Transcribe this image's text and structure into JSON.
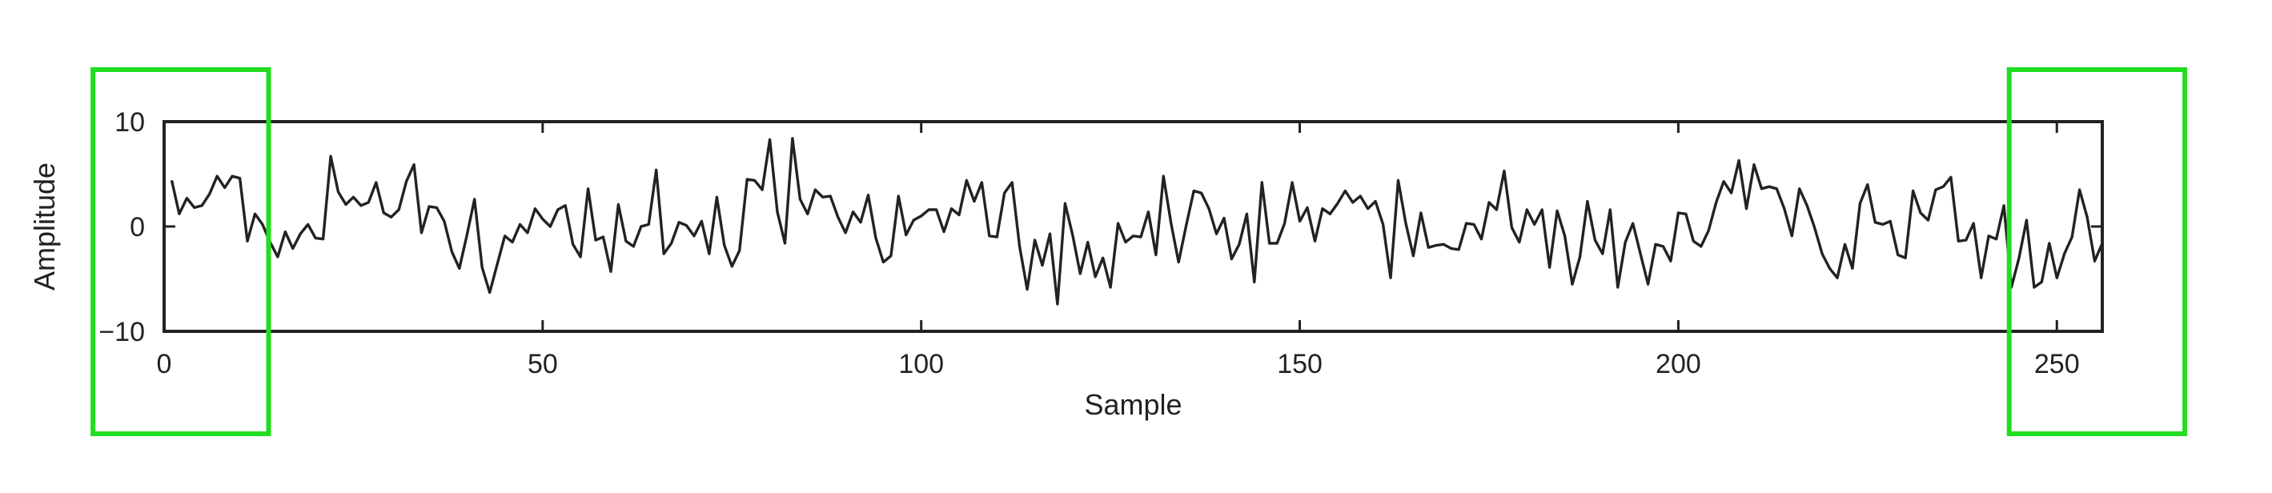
{
  "chart_data": {
    "type": "line",
    "title": "",
    "xlabel": "Sample",
    "ylabel": "Amplitude",
    "xlim": [
      0,
      256
    ],
    "ylim": [
      -10,
      10
    ],
    "xticks": [
      0,
      50,
      100,
      150,
      200,
      250
    ],
    "yticks": [
      -10,
      0,
      10
    ],
    "grid": false,
    "line_color": "#222222",
    "highlight_color": "#22dd22",
    "highlight_ranges": [
      [
        -9.4,
        13.8
      ],
      [
        243.7,
        266.9
      ]
    ],
    "series": [
      {
        "name": "",
        "x": [
          1,
          2,
          3,
          4,
          5,
          6,
          7,
          8,
          9,
          10,
          11,
          12,
          13,
          14,
          15,
          16,
          17,
          18,
          19,
          20,
          21,
          22,
          23,
          24,
          25,
          26,
          27,
          28,
          29,
          30,
          31,
          32,
          33,
          34,
          35,
          36,
          37,
          38,
          39,
          40,
          41,
          42,
          43,
          44,
          45,
          46,
          47,
          48,
          49,
          50,
          51,
          52,
          53,
          54,
          55,
          56,
          57,
          58,
          59,
          60,
          61,
          62,
          63,
          64,
          65,
          66,
          67,
          68,
          69,
          70,
          71,
          72,
          73,
          74,
          75,
          76,
          77,
          78,
          79,
          80,
          81,
          82,
          83,
          84,
          85,
          86,
          87,
          88,
          89,
          90,
          91,
          92,
          93,
          94,
          95,
          96,
          97,
          98,
          99,
          100,
          101,
          102,
          103,
          104,
          105,
          106,
          107,
          108,
          109,
          110,
          111,
          112,
          113,
          114,
          115,
          116,
          117,
          118,
          119,
          120,
          121,
          122,
          123,
          124,
          125,
          126,
          127,
          128,
          129,
          130,
          131,
          132,
          133,
          134,
          135,
          136,
          137,
          138,
          139,
          140,
          141,
          142,
          143,
          144,
          145,
          146,
          147,
          148,
          149,
          150,
          151,
          152,
          153,
          154,
          155,
          156,
          157,
          158,
          159,
          160,
          161,
          162,
          163,
          164,
          165,
          166,
          167,
          168,
          169,
          170,
          171,
          172,
          173,
          174,
          175,
          176,
          177,
          178,
          179,
          180,
          181,
          182,
          183,
          184,
          185,
          186,
          187,
          188,
          189,
          190,
          191,
          192,
          193,
          194,
          195,
          196,
          197,
          198,
          199,
          200,
          201,
          202,
          203,
          204,
          205,
          206,
          207,
          208,
          209,
          210,
          211,
          212,
          213,
          214,
          215,
          216,
          217,
          218,
          219,
          220,
          221,
          222,
          223,
          224,
          225,
          226,
          227,
          228,
          229,
          230,
          231,
          232,
          233,
          234,
          235,
          236,
          237,
          238,
          239,
          240,
          241,
          242,
          243,
          244,
          245,
          246,
          247,
          248,
          249,
          250,
          251,
          252,
          253,
          254,
          255,
          256
        ],
        "y": [
          4.4,
          1.2,
          2.7,
          1.8,
          2.0,
          3.1,
          4.8,
          3.7,
          4.8,
          4.6,
          -1.4,
          1.2,
          0.2,
          -1.5,
          -2.9,
          -0.5,
          -2.1,
          -0.7,
          0.2,
          -1.1,
          -1.2,
          6.7,
          3.3,
          2.1,
          2.8,
          2.0,
          2.3,
          4.2,
          1.3,
          0.9,
          1.6,
          4.3,
          5.9,
          -0.6,
          1.9,
          1.8,
          0.5,
          -2.4,
          -4.0,
          -0.8,
          2.6,
          -3.9,
          -6.3,
          -3.6,
          -0.9,
          -1.5,
          0.2,
          -0.6,
          1.7,
          0.7,
          0.0,
          1.6,
          2.0,
          -1.7,
          -2.9,
          3.6,
          -1.3,
          -1.0,
          -4.3,
          2.1,
          -1.4,
          -1.9,
          0.0,
          0.2,
          5.4,
          -2.6,
          -1.6,
          0.4,
          0.1,
          -0.9,
          0.5,
          -2.6,
          2.8,
          -1.8,
          -3.8,
          -2.3,
          4.5,
          4.4,
          3.5,
          8.3,
          1.4,
          -1.6,
          8.4,
          2.6,
          1.2,
          3.5,
          2.8,
          2.9,
          0.9,
          -0.6,
          1.4,
          0.4,
          3.0,
          -1.1,
          -3.4,
          -2.8,
          2.9,
          -0.8,
          0.6,
          1.0,
          1.6,
          1.6,
          -0.5,
          1.7,
          1.1,
          4.4,
          2.4,
          4.2,
          -0.9,
          -1.0,
          3.2,
          4.2,
          -1.9,
          -6.0,
          -1.3,
          -3.7,
          -0.7,
          -7.4,
          2.2,
          -0.8,
          -4.5,
          -1.5,
          -4.8,
          -3.0,
          -5.8,
          0.3,
          -1.5,
          -0.9,
          -1.0,
          1.4,
          -2.7,
          4.8,
          0.3,
          -3.4,
          0.1,
          3.4,
          3.2,
          1.7,
          -0.7,
          0.8,
          -3.1,
          -1.7,
          1.2,
          -5.3,
          4.2,
          -1.6,
          -1.6,
          0.3,
          4.2,
          0.5,
          1.8,
          -1.4,
          1.7,
          1.2,
          2.2,
          3.4,
          2.3,
          2.9,
          1.7,
          2.4,
          0.2,
          -4.9,
          4.4,
          0.3,
          -2.8,
          1.3,
          -2.0,
          -1.8,
          -1.7,
          -2.1,
          -2.2,
          0.3,
          0.2,
          -1.2,
          2.3,
          1.6,
          5.3,
          -0.1,
          -1.5,
          1.6,
          0.2,
          1.6,
          -3.9,
          1.5,
          -0.9,
          -5.5,
          -2.9,
          2.4,
          -1.3,
          -2.6,
          1.6,
          -5.8,
          -1.5,
          0.3,
          -2.6,
          -5.5,
          -1.7,
          -1.9,
          -3.3,
          1.3,
          1.2,
          -1.4,
          -1.9,
          -0.4,
          2.3,
          4.3,
          3.2,
          6.3,
          1.7,
          5.9,
          3.6,
          3.8,
          3.6,
          1.7,
          -0.9,
          3.6,
          2.0,
          -0.1,
          -2.6,
          -4.0,
          -4.9,
          -1.7,
          -4.0,
          2.2,
          4.0,
          0.4,
          0.2,
          0.5,
          -2.7,
          -3.0,
          3.4,
          1.3,
          0.6,
          3.5,
          3.8,
          4.7,
          -1.4,
          -1.3,
          0.3,
          -4.9,
          -0.9,
          -1.2,
          2.0,
          -5.8,
          -3.0,
          0.6,
          -5.8,
          -5.3,
          -1.6,
          -4.9,
          -2.6,
          -1.0,
          3.5,
          0.9,
          -3.3,
          -1.6
        ]
      }
    ]
  }
}
